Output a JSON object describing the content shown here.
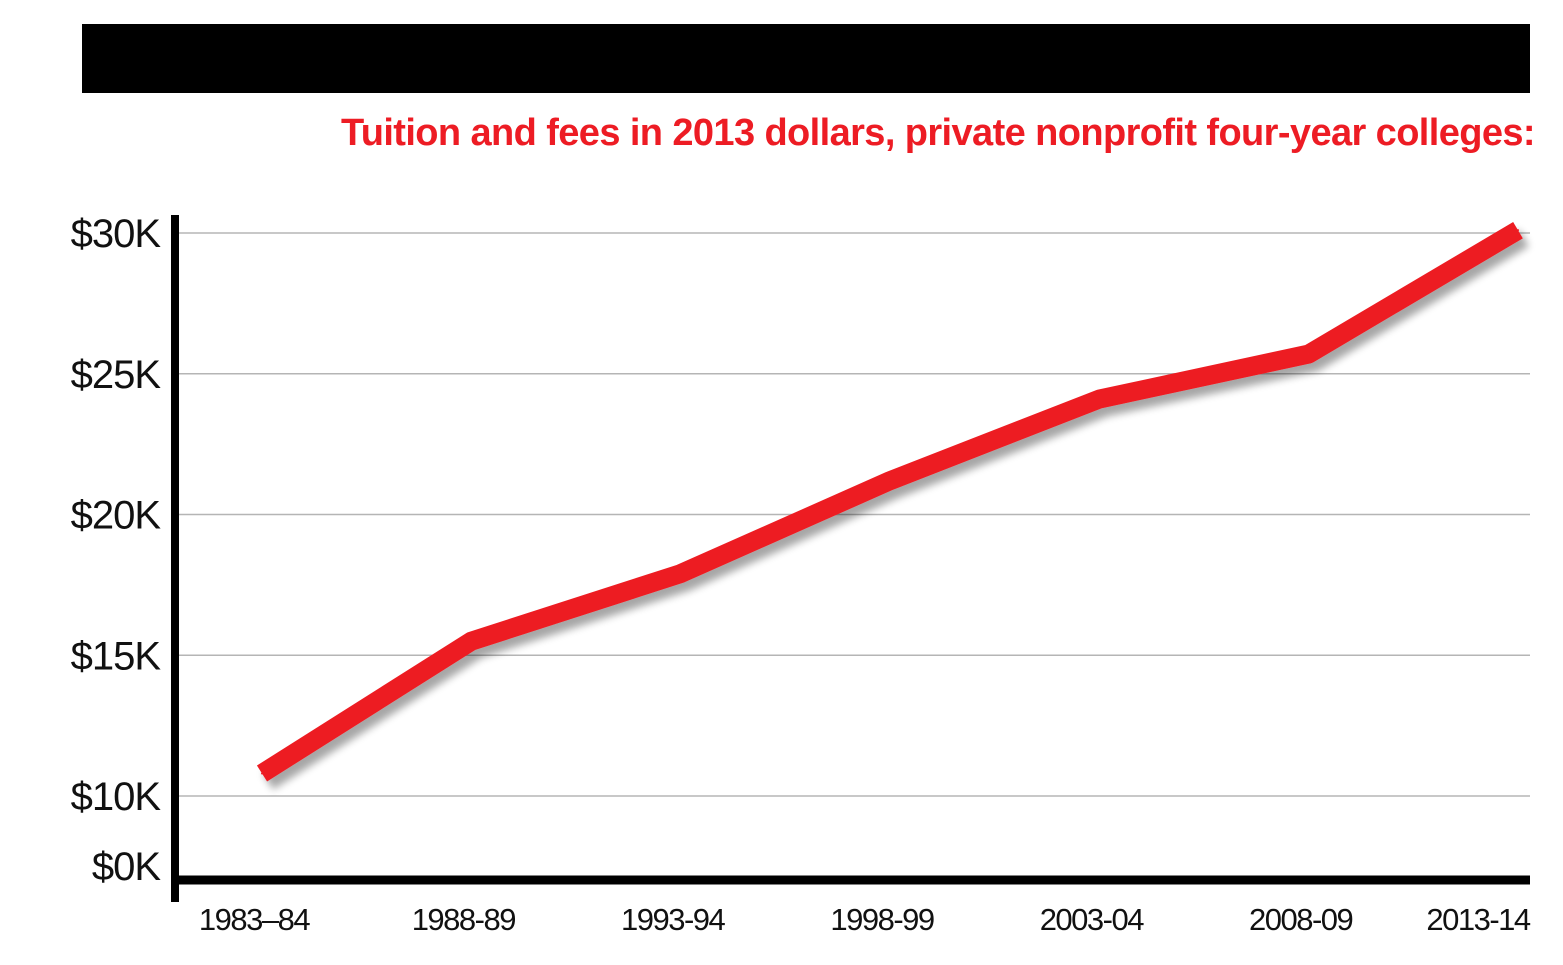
{
  "chart_data": {
    "type": "line",
    "title": "Tuition and fees in 2013 dollars, private nonprofit four-year colleges:",
    "xlabel": "",
    "ylabel": "",
    "categories": [
      "1983–84",
      "1988-89",
      "1993-94",
      "1998-99",
      "2003-04",
      "2008-09",
      "2013-14"
    ],
    "series": [
      {
        "name": "",
        "values": [
          10800,
          15500,
          17900,
          21200,
          24100,
          25700,
          30100
        ]
      }
    ],
    "y_ticks": [
      {
        "value": 0,
        "label": "$0K"
      },
      {
        "value": 10000,
        "label": "$10K"
      },
      {
        "value": 15000,
        "label": "$15K"
      },
      {
        "value": 20000,
        "label": "$20K"
      },
      {
        "value": 25000,
        "label": "$25K"
      },
      {
        "value": 30000,
        "label": "$30K"
      }
    ],
    "ylim": [
      0,
      30000
    ],
    "y_axis_break": true,
    "grid": true,
    "legend": "none",
    "colors": {
      "line": "#ed1c24",
      "title": "#ed1c24",
      "axis": "#000000",
      "grid": "#b5b5b5",
      "bar": "#000000"
    }
  }
}
